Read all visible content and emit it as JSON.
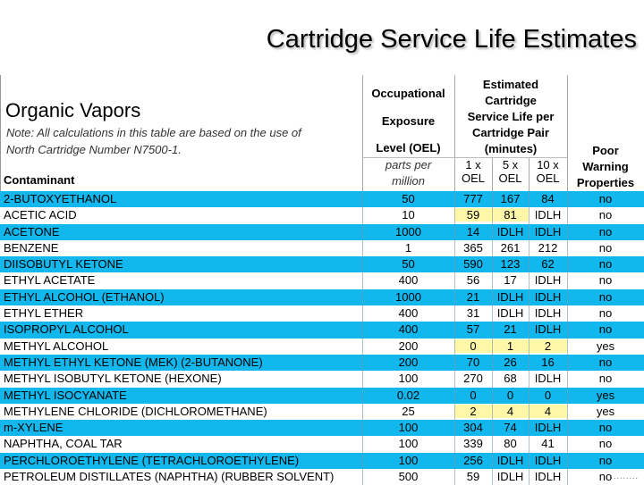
{
  "title": "Cartridge Service Life Estimates",
  "heading": "Organic Vapors",
  "note_line1": "Note: All calculations in this table are based on the use of",
  "note_line2": "North Cartridge Number N7500-1.",
  "headers": {
    "contaminant": "Contaminant",
    "oel_line1": "Occupational",
    "oel_line2": "Exposure",
    "oel_line3": "Level (OEL)",
    "ppm_line1": "parts per",
    "ppm_line2": "million",
    "est_line1": "Estimated",
    "est_line2": "Cartridge",
    "est_line3": "Service Life per",
    "est_line4": "Cartridge Pair",
    "est_line5": "(minutes)",
    "sub_1x_a": "1 x",
    "sub_1x_b": "OEL",
    "sub_5x_a": "5 x",
    "sub_5x_b": "OEL",
    "sub_10x_a": "10 x",
    "sub_10x_b": "OEL",
    "poor_line1": "Poor",
    "poor_line2": "Warning",
    "poor_line3": "Properties"
  },
  "rows": [
    {
      "name": "2-BUTOXYETHANOL",
      "oel": "50",
      "x1": "777",
      "x5": "167",
      "x10": "84",
      "poor": "no"
    },
    {
      "name": "ACETIC ACID",
      "oel": "10",
      "x1": "59",
      "x5": "81",
      "x10": "IDLH",
      "poor": "no"
    },
    {
      "name": "ACETONE",
      "oel": "1000",
      "x1": "14",
      "x5": "IDLH",
      "x10": "IDLH",
      "poor": "no"
    },
    {
      "name": "BENZENE",
      "oel": "1",
      "x1": "365",
      "x5": "261",
      "x10": "212",
      "poor": "no"
    },
    {
      "name": "DIISOBUTYL KETONE",
      "oel": "50",
      "x1": "590",
      "x5": "123",
      "x10": "62",
      "poor": "no"
    },
    {
      "name": "ETHYL ACETATE",
      "oel": "400",
      "x1": "56",
      "x5": "17",
      "x10": "IDLH",
      "poor": "no"
    },
    {
      "name": "ETHYL ALCOHOL (ETHANOL)",
      "oel": "1000",
      "x1": "21",
      "x5": "IDLH",
      "x10": "IDLH",
      "poor": "no"
    },
    {
      "name": "ETHYL ETHER",
      "oel": "400",
      "x1": "31",
      "x5": "IDLH",
      "x10": "IDLH",
      "poor": "no"
    },
    {
      "name": "ISOPROPYL ALCOHOL",
      "oel": "400",
      "x1": "57",
      "x5": "21",
      "x10": "IDLH",
      "poor": "no"
    },
    {
      "name": "METHYL ALCOHOL",
      "oel": "200",
      "x1": "0",
      "x5": "1",
      "x10": "2",
      "poor": "yes"
    },
    {
      "name": "METHYL ETHYL KETONE (MEK) (2-BUTANONE)",
      "oel": "200",
      "x1": "70",
      "x5": "26",
      "x10": "16",
      "poor": "no"
    },
    {
      "name": "METHYL ISOBUTYL KETONE (HEXONE)",
      "oel": "100",
      "x1": "270",
      "x5": "68",
      "x10": "IDLH",
      "poor": "no"
    },
    {
      "name": "METHYL ISOCYANATE",
      "oel": "0.02",
      "x1": "0",
      "x5": "0",
      "x10": "0",
      "poor": "yes"
    },
    {
      "name": "METHYLENE CHLORIDE (DICHLOROMETHANE)",
      "oel": "25",
      "x1": "2",
      "x5": "4",
      "x10": "4",
      "poor": "yes"
    },
    {
      "name": "m-XYLENE",
      "oel": "100",
      "x1": "304",
      "x5": "74",
      "x10": "IDLH",
      "poor": "no"
    },
    {
      "name": "NAPHTHA, COAL TAR",
      "oel": "100",
      "x1": "339",
      "x5": "80",
      "x10": "41",
      "poor": "no"
    },
    {
      "name": "PERCHLOROETHYLENE (TETRACHLOROETHYLENE)",
      "oel": "100",
      "x1": "256",
      "x5": "IDLH",
      "x10": "IDLH",
      "poor": "no"
    },
    {
      "name": "PETROLEUM DISTILLATES (NAPHTHA) (RUBBER SOLVENT)",
      "oel": "500",
      "x1": "59",
      "x5": "IDLH",
      "x10": "IDLH",
      "poor": "no"
    }
  ],
  "highlight_color": "#fff7a8",
  "stripe_color": "#12b7ee"
}
